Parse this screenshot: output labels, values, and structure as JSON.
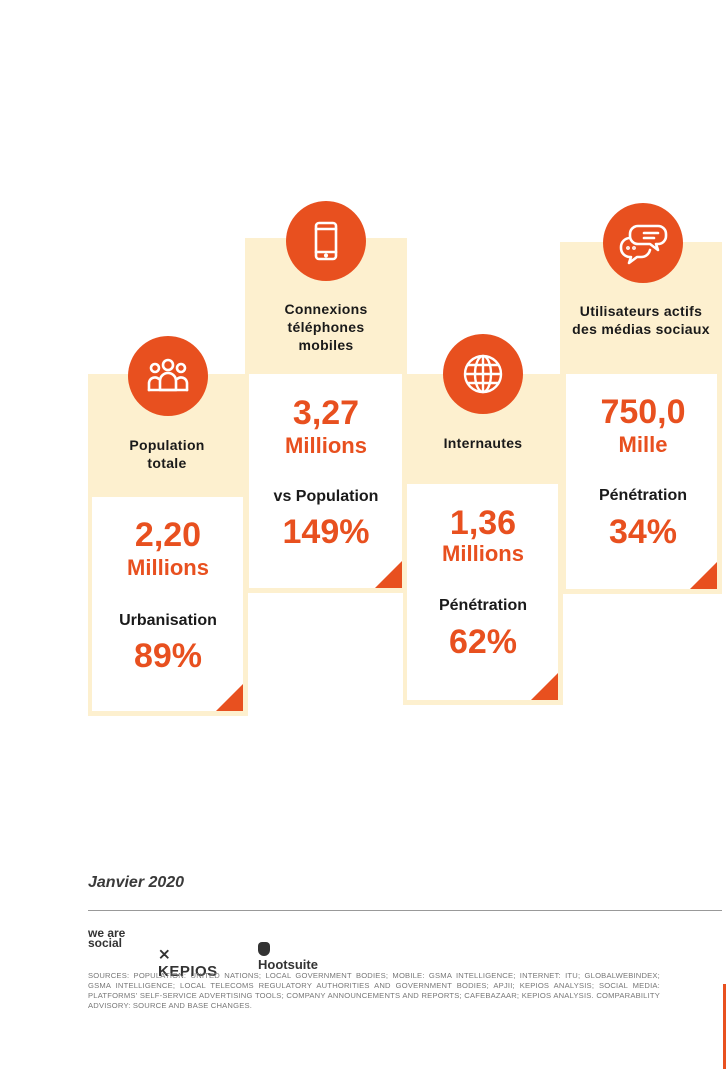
{
  "cards": [
    {
      "label": "Population totale",
      "value": "2,20",
      "unit": "Millions",
      "sub_label": "Urbanisation",
      "sub_value": "89%",
      "icon": "people-icon"
    },
    {
      "label": "Connexions téléphones mobiles",
      "value": "3,27",
      "unit": "Millions",
      "sub_label": "vs Population",
      "sub_value": "149%",
      "icon": "smartphone-icon"
    },
    {
      "label": "Internautes",
      "value": "1,36",
      "unit": "Millions",
      "sub_label": "Pénétration",
      "sub_value": "62%",
      "icon": "globe-icon"
    },
    {
      "label": "Utilisateurs actifs des médias sociaux",
      "value": "750,0",
      "unit": "Mille",
      "sub_label": "Pénétration",
      "sub_value": "34%",
      "icon": "chat-bubbles-icon"
    }
  ],
  "footer": {
    "date": "Janvier 2020",
    "logo_we_are_social": "we are social",
    "logo_kepios": "KEPIOS",
    "logo_hootsuite": "Hootsuite",
    "sources": "SOURCES: POPULATION: UNITED NATIONS; LOCAL GOVERNMENT BODIES; MOBILE: GSMA INTELLIGENCE; INTERNET: ITU; GLOBALWEBINDEX; GSMA INTELLIGENCE; LOCAL TELECOMS REGULATORY AUTHORITIES AND GOVERNMENT BODIES; APJII; KEPIOS ANALYSIS; SOCIAL MEDIA: PLATFORMS' SELF-SERVICE ADVERTISING TOOLS; COMPANY ANNOUNCEMENTS AND REPORTS; CAFEBAZAAR; KEPIOS ANALYSIS. COMPARABILITY ADVISORY: SOURCE AND BASE CHANGES."
  },
  "colors": {
    "accent": "#e8501f",
    "panel": "#fdf0cf"
  }
}
